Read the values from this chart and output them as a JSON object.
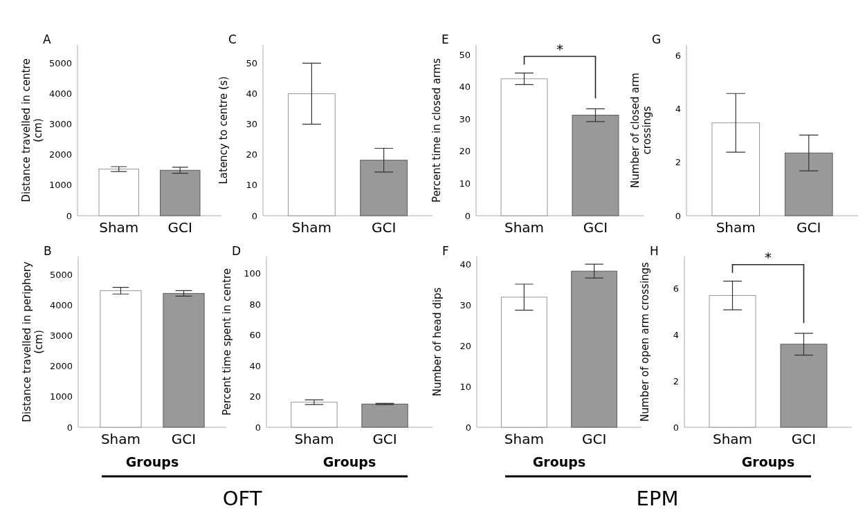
{
  "chart_data": [
    {
      "type": "bar",
      "title": "A",
      "ylabel": "Distance travelled in centre (cm)",
      "categories": [
        "Sham",
        "GCI"
      ],
      "values": [
        1530,
        1490
      ],
      "errors": [
        80,
        100
      ],
      "colors": [
        "#ffffff",
        "#999999"
      ],
      "ylim": [
        0,
        5600
      ],
      "yticks": [
        0,
        1000,
        2000,
        3000,
        4000,
        5000
      ]
    },
    {
      "type": "bar",
      "title": "C",
      "ylabel": "Latency to centre (s)",
      "categories": [
        "Sham",
        "GCI"
      ],
      "values": [
        40,
        18.2
      ],
      "errors": [
        10,
        3.9
      ],
      "colors": [
        "#ffffff",
        "#999999"
      ],
      "ylim": [
        0,
        56
      ],
      "yticks": [
        0,
        10,
        20,
        30,
        40,
        50
      ]
    },
    {
      "type": "bar",
      "title": "E",
      "ylabel": "Percent time in closed arms",
      "categories": [
        "Sham",
        "GCI"
      ],
      "values": [
        42.5,
        31.2
      ],
      "errors": [
        1.8,
        2
      ],
      "colors": [
        "#ffffff",
        "#999999"
      ],
      "ylim": [
        0,
        53
      ],
      "yticks": [
        0,
        10,
        20,
        30,
        40,
        50
      ],
      "annotations": [
        "*"
      ]
    },
    {
      "type": "bar",
      "title": "G",
      "ylabel": "Number of closed arm crossings",
      "categories": [
        "Sham",
        "GCI"
      ],
      "values": [
        3.48,
        2.35
      ],
      "errors": [
        1.1,
        0.67
      ],
      "colors": [
        "#ffffff",
        "#999999"
      ],
      "ylim": [
        0,
        6.4
      ],
      "yticks": [
        0,
        2,
        4,
        6
      ]
    },
    {
      "type": "bar",
      "title": "B",
      "ylabel": "Distance travelled in periphery (cm)",
      "xlabel": "Groups",
      "categories": [
        "Sham",
        "GCI"
      ],
      "values": [
        4480,
        4390
      ],
      "errors": [
        110,
        90
      ],
      "colors": [
        "#ffffff",
        "#999999"
      ],
      "ylim": [
        0,
        5600
      ],
      "yticks": [
        0,
        1000,
        2000,
        3000,
        4000,
        5000
      ]
    },
    {
      "type": "bar",
      "title": "D",
      "ylabel": "Percent time spent in centre",
      "xlabel": "Groups",
      "categories": [
        "Sham",
        "GCI"
      ],
      "values": [
        16.3,
        15.1
      ],
      "errors": [
        1.5,
        0.5
      ],
      "colors": [
        "#ffffff",
        "#999999"
      ],
      "ylim": [
        0,
        111
      ],
      "yticks": [
        0,
        20,
        40,
        60,
        80,
        100
      ]
    },
    {
      "type": "bar",
      "title": "F",
      "ylabel": "Number of head dips",
      "xlabel": "Groups",
      "categories": [
        "Sham",
        "GCI"
      ],
      "values": [
        32,
        38.4
      ],
      "errors": [
        3.2,
        1.7
      ],
      "colors": [
        "#ffffff",
        "#999999"
      ],
      "ylim": [
        0,
        42
      ],
      "yticks": [
        0,
        10,
        20,
        30,
        40
      ]
    },
    {
      "type": "bar",
      "title": "H",
      "ylabel": "Number of open arm crossings",
      "xlabel": "Groups",
      "categories": [
        "Sham",
        "GCI"
      ],
      "values": [
        5.71,
        3.6
      ],
      "errors": [
        0.62,
        0.47
      ],
      "colors": [
        "#ffffff",
        "#999999"
      ],
      "ylim": [
        0,
        7.4
      ],
      "yticks": [
        0,
        2,
        4,
        6
      ],
      "annotations": [
        "*"
      ]
    },
    {
      "type": "other",
      "annotations": [
        "OFT",
        "EPM"
      ]
    }
  ]
}
